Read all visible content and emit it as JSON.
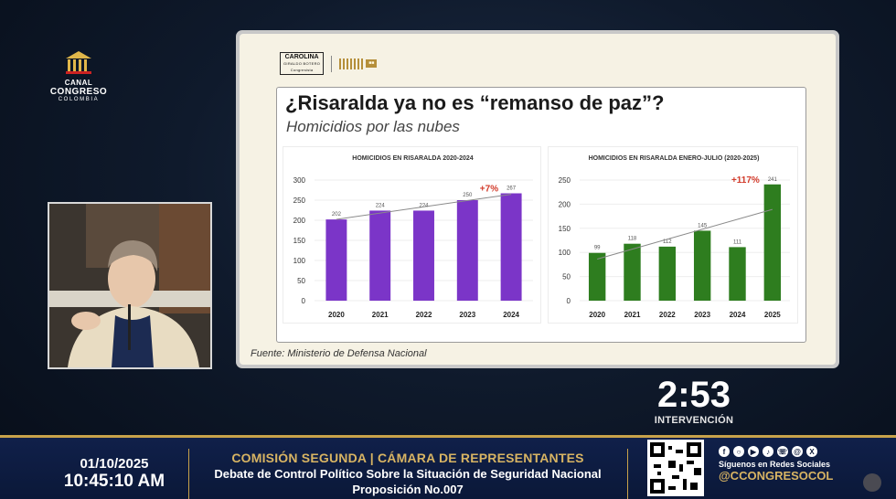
{
  "channel_logo": {
    "line1": "CANAL",
    "line2": "CONGRESO",
    "line3": "COLOMBIA"
  },
  "slide": {
    "badge_name": "CAROLINA",
    "badge_sub": "GIRALDO BOTERO",
    "badge_sub2": "Congresista",
    "title": "¿Risaralda ya no es “remanso de paz”?",
    "subtitle": "Homicidios por las nubes",
    "source": "Fuente: Ministerio de Defensa Nacional"
  },
  "chart_data": [
    {
      "type": "bar",
      "title": "HOMICIDIOS EN RISARALDA 2020-2024",
      "categories": [
        "2020",
        "2021",
        "2022",
        "2023",
        "2024"
      ],
      "values": [
        202,
        224,
        224,
        250,
        267
      ],
      "data_labels": [
        "202",
        "224",
        "224",
        "250",
        "267"
      ],
      "ylim": [
        0,
        300
      ],
      "yticks": [
        0,
        50,
        100,
        150,
        200,
        250,
        300
      ],
      "color": "#7b35c8",
      "trendline": true,
      "trendline_color": "#8a8a8a",
      "annotation": "+7%",
      "annotation_color": "#d23a2a",
      "grid": true
    },
    {
      "type": "bar",
      "title": "HOMICIDIOS EN RISARALDA ENERO-JULIO (2020-2025)",
      "categories": [
        "2020",
        "2021",
        "2022",
        "2023",
        "2024",
        "2025"
      ],
      "values": [
        99,
        118,
        112,
        145,
        111,
        241
      ],
      "data_labels": [
        "99",
        "118",
        "112",
        "145",
        "111",
        "241"
      ],
      "ylim": [
        0,
        250
      ],
      "yticks": [
        0,
        50,
        100,
        150,
        200,
        250
      ],
      "color": "#2e7d1f",
      "trendline": true,
      "trendline_color": "#8a8a8a",
      "annotation": "+117%",
      "annotation_color": "#d23a2a",
      "grid": true
    }
  ],
  "timer": {
    "time": "2:53",
    "label": "INTERVENCIÓN"
  },
  "ticker": {
    "date": "01/10/2025",
    "time": "10:45:10 AM",
    "line1": "COMISIÓN SEGUNDA | CÁMARA DE REPRESENTANTES",
    "line2": "Debate de Control Político Sobre la Situación de Seguridad Nacional",
    "line3": "Proposición No.007",
    "social_label": "Síguenos en Redes Sociales",
    "social_handle": "@CCONGRESOCOL"
  },
  "colors": {
    "ticker_bg": "#0b1838",
    "gold": "#c8a24a",
    "slide_bg": "#f6f2e4"
  }
}
